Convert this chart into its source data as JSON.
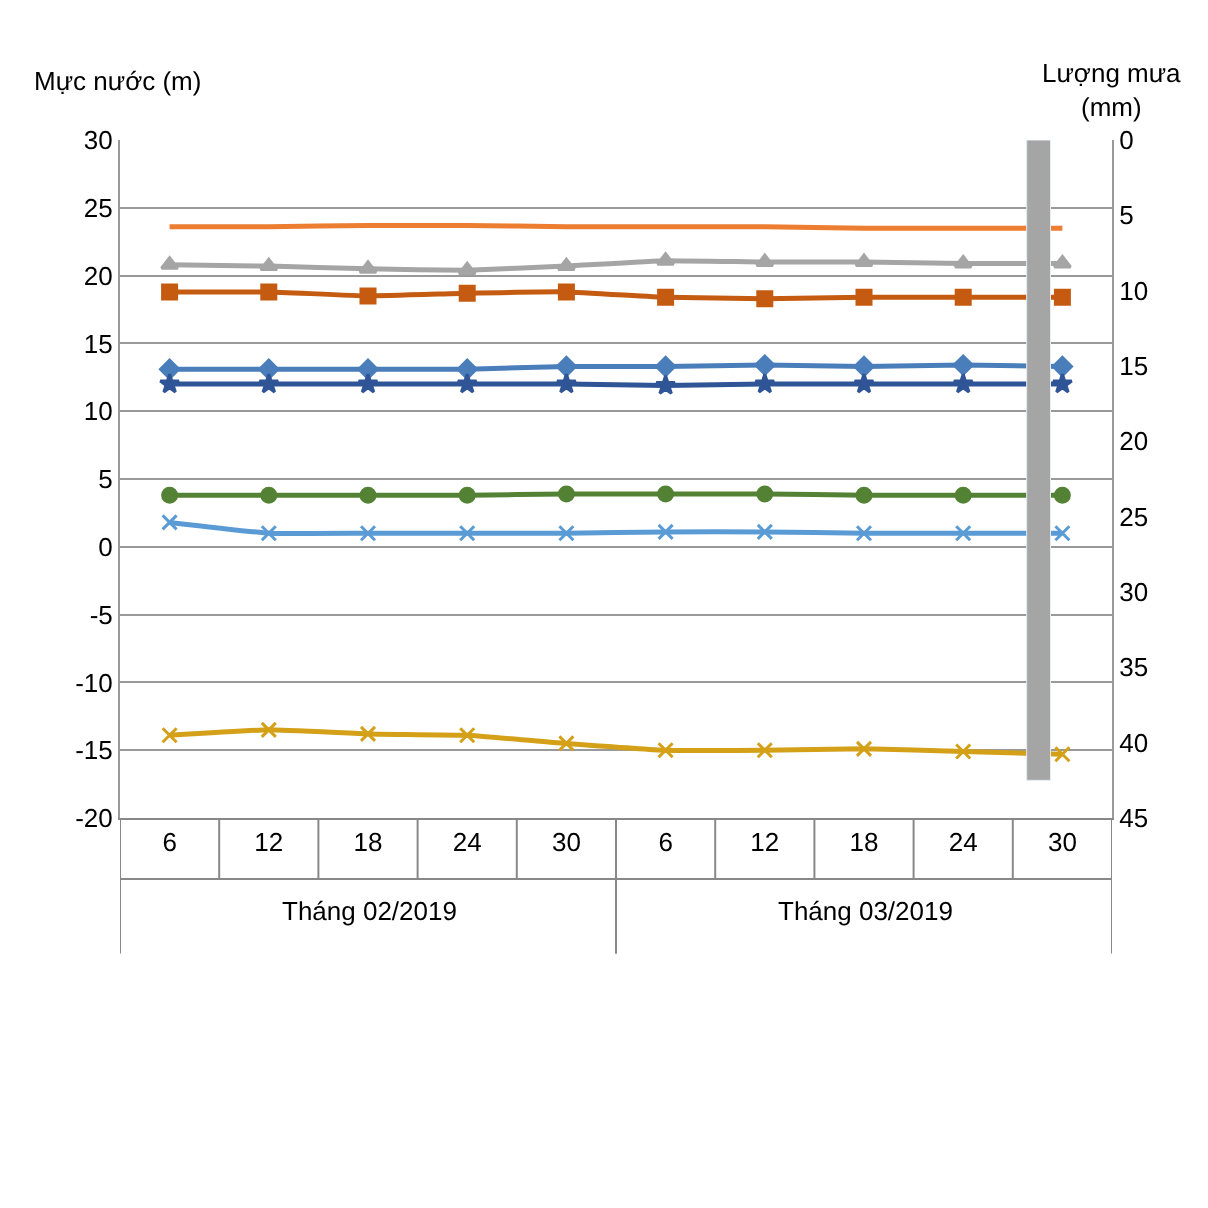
{
  "chart_data": {
    "type": "line",
    "ylabel": "Mực nước (m)",
    "y2label": "Lượng mưa (mm)",
    "categories": [
      "6",
      "12",
      "18",
      "24",
      "30",
      "6",
      "12",
      "18",
      "24",
      "30"
    ],
    "annotations": [
      "Tháng 02/2019",
      "Tháng 03/2019"
    ],
    "series": [
      {
        "color": "#ed7d31",
        "marker": "none",
        "values": [
          23.6,
          23.6,
          23.7,
          23.7,
          23.6,
          23.6,
          23.6,
          23.5,
          23.5,
          23.5
        ]
      },
      {
        "color": "#a5a5a5",
        "marker": "triangle",
        "values": [
          20.8,
          20.7,
          20.5,
          20.4,
          20.7,
          21.1,
          21.0,
          21.0,
          20.9,
          20.9
        ]
      },
      {
        "color": "#c55a11",
        "marker": "square",
        "values": [
          18.8,
          18.8,
          18.5,
          18.7,
          18.8,
          18.4,
          18.3,
          18.4,
          18.4,
          18.4
        ]
      },
      {
        "color": "#4a7ebb",
        "marker": "diamond",
        "values": [
          13.1,
          13.1,
          13.1,
          13.1,
          13.3,
          13.3,
          13.4,
          13.3,
          13.4,
          13.3
        ]
      },
      {
        "color": "#2f5597",
        "marker": "star",
        "values": [
          12.0,
          12.0,
          12.0,
          12.0,
          12.0,
          11.9,
          12.0,
          12.0,
          12.0,
          12.0
        ]
      },
      {
        "color": "#548235",
        "marker": "circle",
        "values": [
          3.8,
          3.8,
          3.8,
          3.8,
          3.9,
          3.9,
          3.9,
          3.8,
          3.8,
          3.8
        ]
      },
      {
        "color": "#5b9bd5",
        "marker": "cross",
        "values": [
          1.8,
          1.0,
          1.0,
          1.0,
          1.0,
          1.1,
          1.1,
          1.0,
          1.0,
          1.0
        ]
      },
      {
        "color": "#d4a017",
        "marker": "cross",
        "values": [
          -13.9,
          -13.5,
          -13.8,
          -13.9,
          -14.5,
          -15.0,
          -15.0,
          -14.9,
          -15.1,
          -15.3
        ]
      },
      {
        "type": "bar",
        "axis": "y2",
        "color": "#a5a5a5",
        "values": [
          null,
          null,
          null,
          null,
          null,
          null,
          null,
          null,
          null,
          42.5
        ]
      }
    ],
    "ylim": [
      -20,
      30
    ],
    "yticks": [
      -20,
      -15,
      -10,
      -5,
      0,
      5,
      10,
      15,
      20,
      25,
      30
    ],
    "y2lim": [
      45,
      0
    ],
    "y2ticks": [
      0,
      5,
      10,
      15,
      20,
      25,
      30,
      35,
      40,
      45
    ],
    "grid": "y",
    "legend": false
  }
}
